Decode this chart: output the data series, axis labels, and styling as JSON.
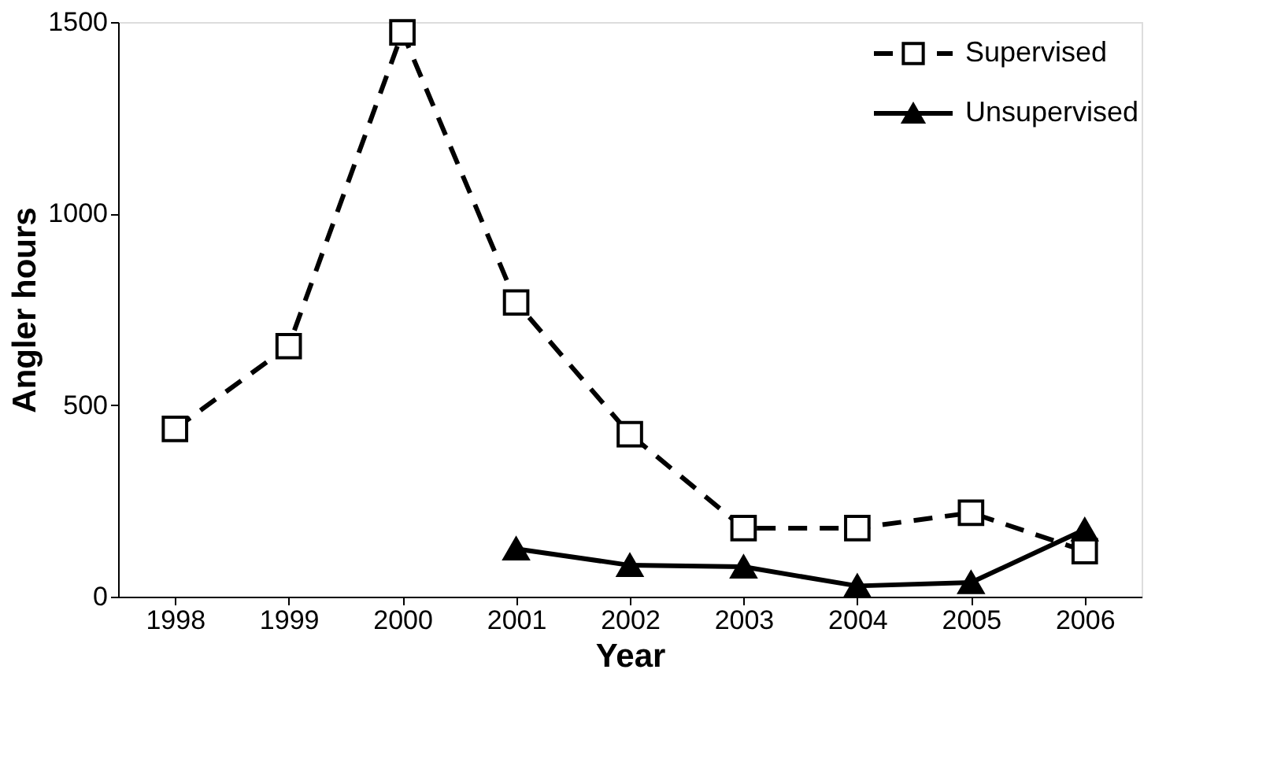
{
  "chart_data": {
    "type": "line",
    "xlabel": "Year",
    "ylabel": "Angler hours",
    "categories": [
      "1998",
      "1999",
      "2000",
      "2001",
      "2002",
      "2003",
      "2004",
      "2005",
      "2006"
    ],
    "series": [
      {
        "name": "Supervised",
        "color": "#000000",
        "marker": "square",
        "line_style": "dashed",
        "values": [
          438,
          654,
          1473,
          768,
          424,
          179,
          179,
          219,
          119
        ]
      },
      {
        "name": "Unsupervised",
        "color": "#000000",
        "marker": "triangle",
        "line_style": "solid",
        "values": [
          null,
          null,
          null,
          125,
          82,
          78,
          28,
          37,
          175
        ]
      }
    ],
    "ylim": [
      0,
      1500
    ],
    "yticks": [
      0,
      500,
      1000,
      1500
    ],
    "grid": false,
    "legend": "top right"
  }
}
